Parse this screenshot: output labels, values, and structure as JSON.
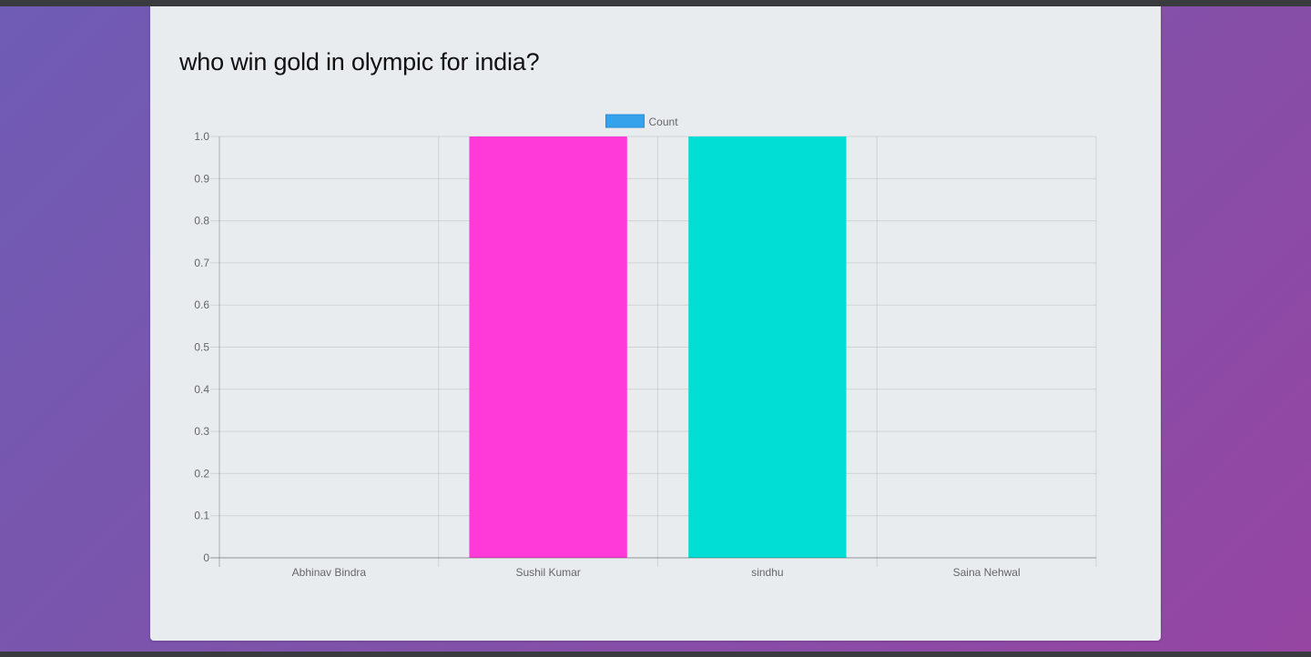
{
  "question": {
    "title": "who win gold in olympic for india?"
  },
  "chart_data": {
    "type": "bar",
    "categories": [
      "Abhinav Bindra",
      "Sushil Kumar",
      "sindhu",
      "Saina Nehwal"
    ],
    "series": [
      {
        "name": "Count",
        "values": [
          0,
          1,
          1,
          0
        ],
        "colors": [
          "#36a2eb",
          "#ff3ad8",
          "#00ded5",
          "#36a2eb"
        ],
        "legend_color": "#36a2eb"
      }
    ],
    "ylim": [
      0,
      1
    ],
    "yticks": [
      0,
      0.1,
      0.2,
      0.3,
      0.4,
      0.5,
      0.6,
      0.7,
      0.8,
      0.9,
      1.0
    ],
    "ytick_labels": [
      "0",
      "0.1",
      "0.2",
      "0.3",
      "0.4",
      "0.5",
      "0.6",
      "0.7",
      "0.8",
      "0.9",
      "1.0"
    ],
    "grid": true,
    "legend": "top-center",
    "title": "",
    "xlabel": "",
    "ylabel": ""
  }
}
